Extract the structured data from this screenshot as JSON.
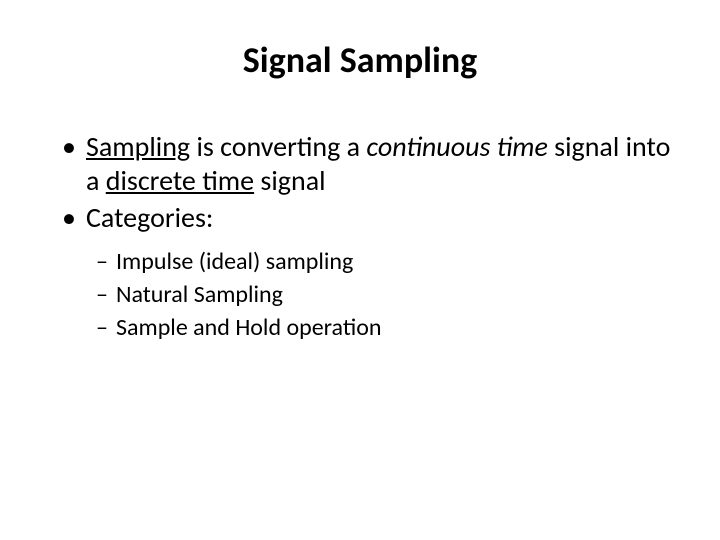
{
  "title": "Signal Sampling",
  "body": {
    "bullet1": {
      "t1": "Sampling",
      "t2": " is converting a ",
      "t3": "continuous time",
      "t4": " signal into a ",
      "t5": "discrete time",
      "t6": " signal"
    },
    "bullet2": "Categories:",
    "sub1": "Impulse (ideal) sampling",
    "sub2": "Natural Sampling",
    "sub3": "Sample and Hold operation"
  },
  "styles": {
    "title_fontsize": 36,
    "body_fontsize": 28,
    "sub_fontsize": 24,
    "text_color": "#000000",
    "background_color": "#ffffff"
  }
}
